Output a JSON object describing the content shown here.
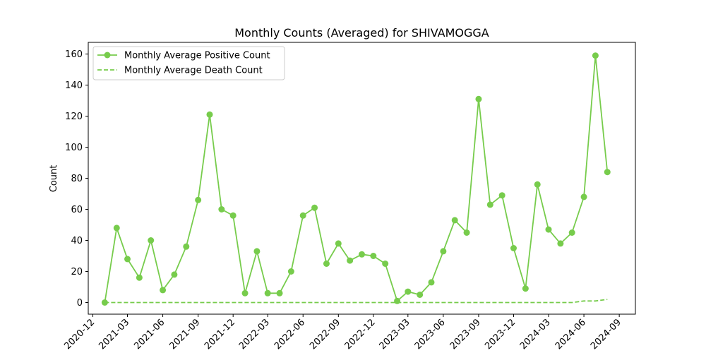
{
  "chart_data": {
    "type": "line",
    "title": "Monthly Counts (Averaged) for SHIVAMOGGA",
    "xlabel": "",
    "ylabel": "Count",
    "ylim": [
      -7.5,
      167.5
    ],
    "xlim": [
      "2020-11-19",
      "2024-10-13"
    ],
    "y_ticks": [
      0,
      20,
      40,
      60,
      80,
      100,
      120,
      140,
      160
    ],
    "x_ticks": [
      "2020-12",
      "2021-03",
      "2021-06",
      "2021-09",
      "2021-12",
      "2022-03",
      "2022-06",
      "2022-09",
      "2022-12",
      "2023-03",
      "2023-06",
      "2023-09",
      "2023-12",
      "2024-03",
      "2024-06",
      "2024-09"
    ],
    "grid": false,
    "legend_position": "top-left",
    "x": [
      "2021-01",
      "2021-02",
      "2021-03",
      "2021-04",
      "2021-05",
      "2021-06",
      "2021-07",
      "2021-08",
      "2021-09",
      "2021-10",
      "2021-11",
      "2021-12",
      "2022-01",
      "2022-02",
      "2022-03",
      "2022-04",
      "2022-05",
      "2022-06",
      "2022-07",
      "2022-08",
      "2022-09",
      "2022-10",
      "2022-11",
      "2022-12",
      "2023-01",
      "2023-02",
      "2023-03",
      "2023-04",
      "2023-05",
      "2023-06",
      "2023-07",
      "2023-08",
      "2023-09",
      "2023-10",
      "2023-11",
      "2023-12",
      "2024-01",
      "2024-02",
      "2024-03",
      "2024-04",
      "2024-05",
      "2024-06",
      "2024-07",
      "2024-08"
    ],
    "series": [
      {
        "name": "Monthly Average Positive Count",
        "style": "solid-marker",
        "color": "#77cc4c",
        "values": [
          0,
          48,
          28,
          16,
          40,
          8,
          18,
          36,
          66,
          121,
          60,
          56,
          6,
          33,
          6,
          6,
          20,
          56,
          61,
          25,
          38,
          27,
          31,
          30,
          25,
          1,
          7,
          5,
          13,
          33,
          53,
          45,
          131,
          63,
          69,
          35,
          9,
          76,
          47,
          38,
          45,
          68,
          159,
          84
        ]
      },
      {
        "name": "Monthly Average Death Count",
        "style": "dashed",
        "color": "#77cc4c",
        "values": [
          0,
          0,
          0,
          0,
          0,
          0,
          0,
          0,
          0,
          0,
          0,
          0,
          0,
          0,
          0,
          0,
          0,
          0,
          0,
          0,
          0,
          0,
          0,
          0,
          0,
          0,
          0,
          0,
          0,
          0,
          0,
          0,
          0,
          0,
          0,
          0,
          0,
          0,
          0,
          0,
          0,
          1,
          1,
          2
        ]
      }
    ]
  }
}
